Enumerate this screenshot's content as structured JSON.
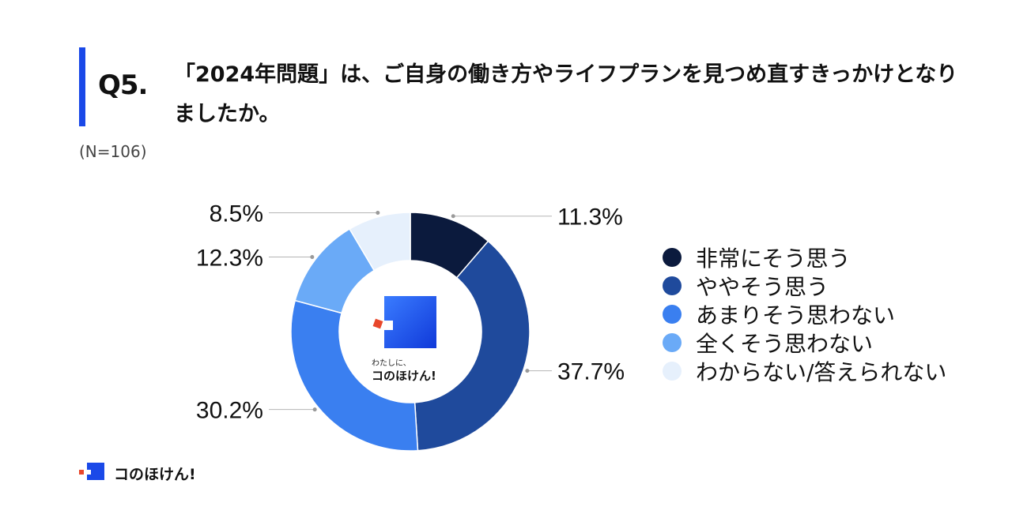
{
  "header": {
    "q_label": "Q5.",
    "question": "「2024年問題」は、ご自身の働き方やライフプランを見つめ直すきっかけとなりましたか。",
    "sample": "(N=106)",
    "accent_color": "#1a49e8"
  },
  "chart_data": {
    "type": "pie",
    "donut": true,
    "title": "",
    "unit": "%",
    "categories": [
      "非常にそう思う",
      "ややそう思う",
      "あまりそう思わない",
      "全くそう思わない",
      "わからない/答えられない"
    ],
    "values": [
      11.3,
      37.7,
      30.2,
      12.3,
      8.5
    ],
    "value_labels": [
      "11.3%",
      "37.7%",
      "30.2%",
      "12.3%",
      "8.5%"
    ],
    "colors": [
      "#0b1a3d",
      "#1f4a9c",
      "#3a7ff0",
      "#6aaaf7",
      "#e6f0fc"
    ],
    "legend_position": "right",
    "start_angle": "top",
    "direction": "clockwise"
  },
  "center_logo": {
    "sub": "わたしに、",
    "brand": "コのほけん!"
  },
  "footer": {
    "brand": "コのほけん!"
  }
}
